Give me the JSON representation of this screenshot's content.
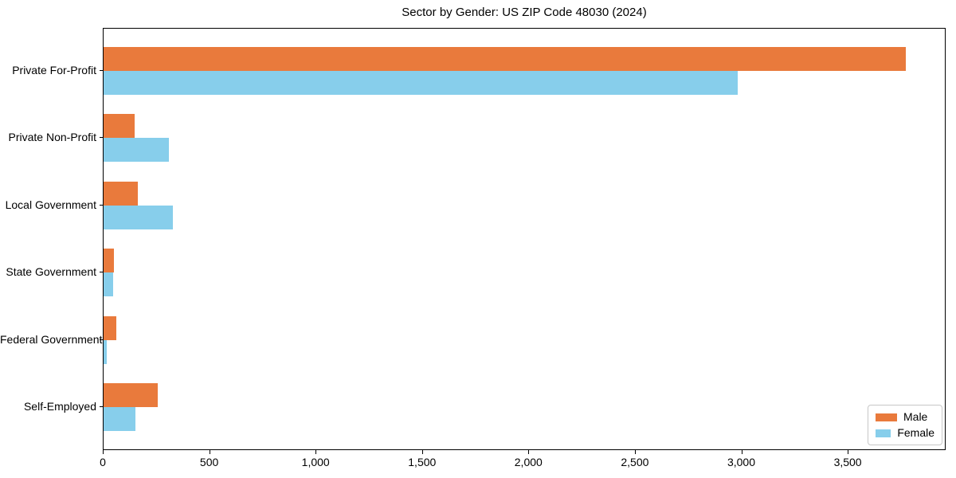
{
  "title": "Sector by Gender: US ZIP Code 48030 (2024)",
  "colors": {
    "male": "#E97A3C",
    "female": "#87CEEB",
    "axis": "#000000",
    "legend_border": "#c7c7c7",
    "background": "#ffffff"
  },
  "legend": {
    "position": "lower right",
    "items": [
      {
        "label": "Male",
        "color": "#E97A3C"
      },
      {
        "label": "Female",
        "color": "#87CEEB"
      }
    ]
  },
  "chart_data": {
    "type": "bar",
    "orientation": "horizontal",
    "title": "Sector by Gender: US ZIP Code 48030 (2024)",
    "categories": [
      "Private For-Profit",
      "Private Non-Profit",
      "Local Government",
      "State Government",
      "Federal Government",
      "Self-Employed"
    ],
    "series": [
      {
        "name": "Male",
        "color": "#E97A3C",
        "values": [
          3770,
          145,
          160,
          48,
          58,
          255
        ]
      },
      {
        "name": "Female",
        "color": "#87CEEB",
        "values": [
          2980,
          305,
          325,
          45,
          15,
          150
        ]
      }
    ],
    "xlabel": "",
    "ylabel": "",
    "xlim": [
      0,
      3960
    ],
    "xticks": [
      0,
      500,
      1000,
      1500,
      2000,
      2500,
      3000,
      3500
    ],
    "xtick_labels": [
      "0",
      "500",
      "1,000",
      "1,500",
      "2,000",
      "2,500",
      "3,000",
      "3,500"
    ],
    "grid": false,
    "legend_position": "lower right"
  }
}
